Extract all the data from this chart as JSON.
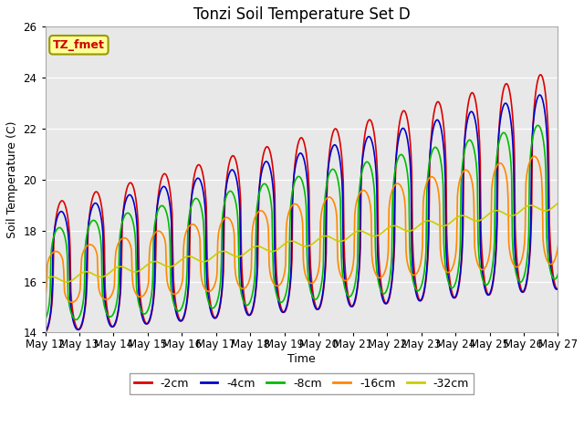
{
  "title": "Tonzi Soil Temperature Set D",
  "xlabel": "Time",
  "ylabel": "Soil Temperature (C)",
  "ylim": [
    14,
    26
  ],
  "legend_label": "TZ_fmet",
  "series_labels": [
    "-2cm",
    "-4cm",
    "-8cm",
    "-16cm",
    "-32cm"
  ],
  "series_colors": [
    "#dd0000",
    "#0000cc",
    "#00bb00",
    "#ff8800",
    "#cccc00"
  ],
  "x_tick_labels": [
    "May 12",
    "May 13",
    "May 14",
    "May 15",
    "May 16",
    "May 17",
    "May 18",
    "May 19",
    "May 20",
    "May 21",
    "May 22",
    "May 23",
    "May 24",
    "May 25",
    "May 26",
    "May 27"
  ],
  "background_color": "#e8e8e8",
  "plot_bg_color": "#e8e8e8",
  "legend_box_color": "#ffff99",
  "legend_box_edge": "#999900",
  "fig_bg": "#ffffff"
}
